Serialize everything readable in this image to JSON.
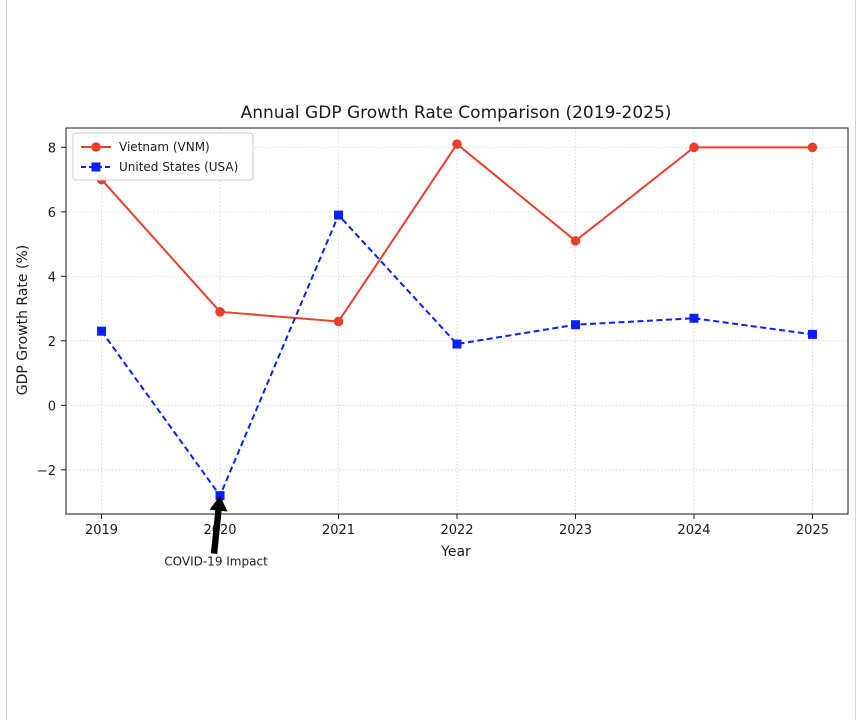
{
  "chart_data": {
    "type": "line",
    "title": "Annual GDP Growth Rate Comparison (2019-2025)",
    "xlabel": "Year",
    "ylabel": "GDP Growth Rate (%)",
    "x": [
      2019,
      2020,
      2021,
      2022,
      2023,
      2024,
      2025
    ],
    "x_tick_labels": [
      "2019",
      "2020",
      "2021",
      "2022",
      "2023",
      "2024",
      "2025"
    ],
    "xlim": [
      2018.7,
      2025.3
    ],
    "ylim": [
      -3.37,
      8.6
    ],
    "y_ticks": [
      -2,
      0,
      2,
      4,
      6,
      8
    ],
    "y_tick_labels": [
      "−2",
      "0",
      "2",
      "4",
      "6",
      "8"
    ],
    "grid": true,
    "legend_position": "top-left",
    "series": [
      {
        "name": "Vietnam (VNM)",
        "values": [
          7.0,
          2.9,
          2.6,
          8.1,
          5.1,
          8.0,
          8.0
        ],
        "color": "#e8402a",
        "line_style": "solid",
        "marker": "circle"
      },
      {
        "name": "United States (USA)",
        "values": [
          2.3,
          -2.8,
          5.9,
          1.9,
          2.5,
          2.7,
          2.2
        ],
        "color": "#0a1fff",
        "line_style": "dashed",
        "marker": "square"
      }
    ],
    "annotation": {
      "text": "COVID-19 Impact",
      "x": 2020,
      "y": -2.8,
      "color": "#000000"
    }
  }
}
